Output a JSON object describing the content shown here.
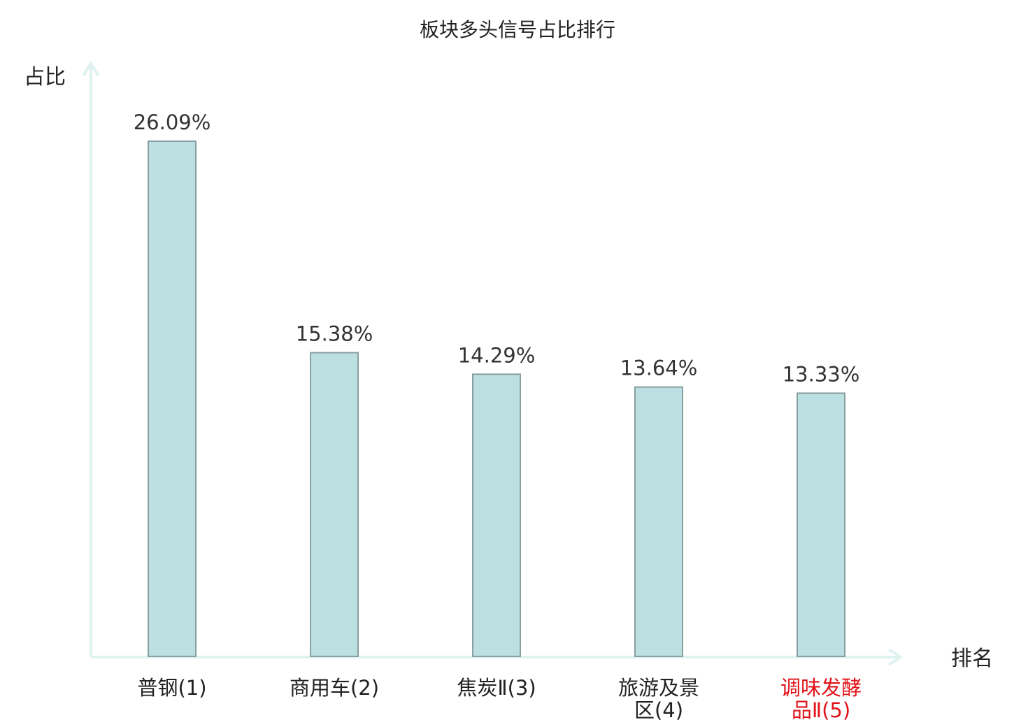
{
  "chart_data": {
    "type": "bar",
    "title": "板块多头信号占比排行",
    "xlabel": "排名",
    "ylabel": "占比",
    "categories": [
      "普钢(1)",
      "商用车(2)",
      "焦炭Ⅱ(3)",
      "旅游及景区(4)",
      "调味发酵品Ⅱ(5)"
    ],
    "category_lines": [
      [
        "普钢(1)"
      ],
      [
        "商用车(2)"
      ],
      [
        "焦炭Ⅱ(3)"
      ],
      [
        "旅游及景",
        "区(4)"
      ],
      [
        "调味发酵",
        "品Ⅱ(5)"
      ]
    ],
    "values": [
      26.09,
      15.38,
      14.29,
      13.64,
      13.33
    ],
    "value_labels": [
      "26.09%",
      "15.38%",
      "14.29%",
      "13.64%",
      "13.33%"
    ],
    "highlighted_category_index": 4,
    "ylim": [
      0,
      30
    ],
    "grid": false,
    "legend": "none",
    "colors": {
      "bar_fill": "#bce0e1",
      "bar_stroke": "#889fa0",
      "axis": "#dff2ef",
      "text": "#222222",
      "value_text": "#333333",
      "highlight_text": "#e0141a"
    }
  }
}
